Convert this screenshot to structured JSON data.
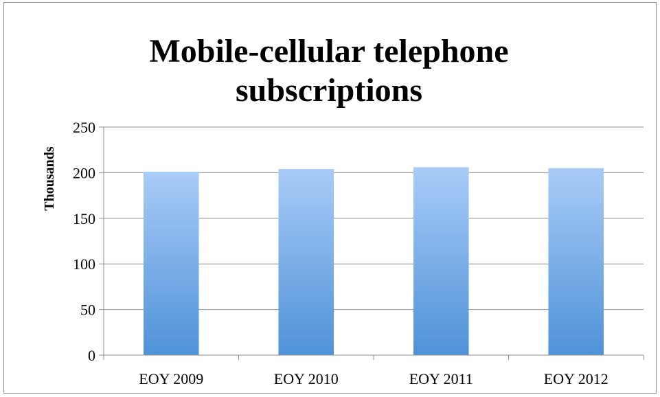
{
  "chart_data": {
    "type": "bar",
    "title_lines": [
      "Mobile-cellular telephone",
      "subscriptions"
    ],
    "title": "Mobile-cellular telephone subscriptions",
    "xlabel": "",
    "ylabel": "Thousands",
    "categories": [
      "EOY 2009",
      "EOY 2010",
      "EOY 2011",
      "EOY 2012"
    ],
    "values": [
      201,
      204,
      206,
      205
    ],
    "ylim": [
      0,
      250
    ],
    "yticks": [
      0,
      50,
      100,
      150,
      200,
      250
    ],
    "grid": true,
    "legend": "none",
    "colors": {
      "bar_top": "#a9cbf7",
      "bar_bottom": "#4f92d8",
      "grid": "#8c8c8c",
      "axis": "#8c8c8c"
    }
  }
}
